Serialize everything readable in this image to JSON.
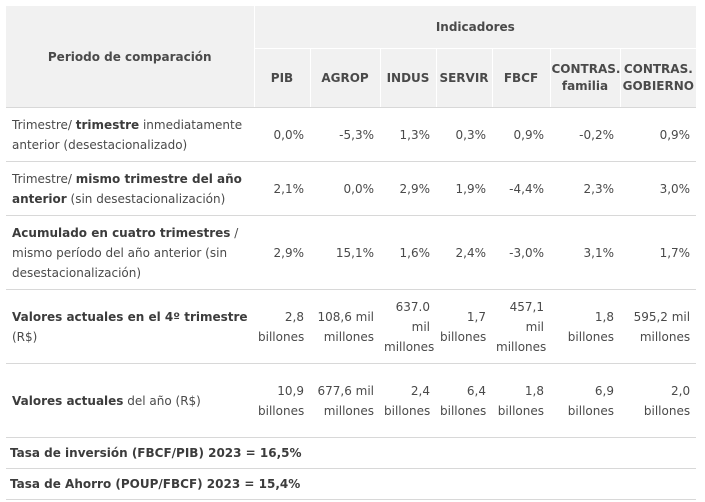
{
  "header": {
    "period": "Periodo de comparación",
    "indicators": "Indicadores",
    "columns": [
      "PIB",
      "AGROP",
      "INDUS",
      "SERVIR",
      "FBCF",
      "CONTRAS. familia",
      "CONTRAS. GOBIERNO"
    ]
  },
  "rows": [
    {
      "label_a": "Trimestre/ ",
      "label_bold": "trimestre",
      "label_b": " inmediatamente anterior (desestacionalizado)",
      "values": [
        "0,0%",
        "-5,3%",
        "1,3%",
        "0,3%",
        "0,9%",
        "-0,2%",
        "0,9%"
      ]
    },
    {
      "label_a": "Trimestre/ ",
      "label_bold": "mismo trimestre del año anterior",
      "label_b": " (sin desestacionalización)",
      "values": [
        "2,1%",
        "0,0%",
        "2,9%",
        "1,9%",
        "-4,4%",
        "2,3%",
        "3,0%"
      ]
    },
    {
      "label_a": "",
      "label_bold": "Acumulado en cuatro trimestres",
      "label_b": " / mismo período del año anterior (sin desestacionalización)",
      "values": [
        "2,9%",
        "15,1%",
        "1,6%",
        "2,4%",
        "-3,0%",
        "3,1%",
        "1,7%"
      ]
    },
    {
      "label_a": "",
      "label_bold": "Valores actuales en el 4º trimestre",
      "label_b": " (R$)",
      "values": [
        "2,8 billones",
        "108,6 mil millones",
        "637.0 mil millones",
        "1,7 billones",
        "457,1 mil millones",
        "1,8 billones",
        "595,2 mil millones"
      ]
    },
    {
      "label_a": "",
      "label_bold": "Valores actuales",
      "label_b": " del año (R$)",
      "values": [
        "10,9 billones",
        "677,6 mil millones",
        "2,4 billones",
        "6,4 billones",
        "1,8 billones",
        "6,9 billones",
        "2,0 billones"
      ]
    }
  ],
  "footer": [
    "Tasa de inversión (FBCF/PIB) 2023 = 16,5%",
    "Tasa de Ahorro (POUP/FBCF) 2023 = 15,4%"
  ]
}
